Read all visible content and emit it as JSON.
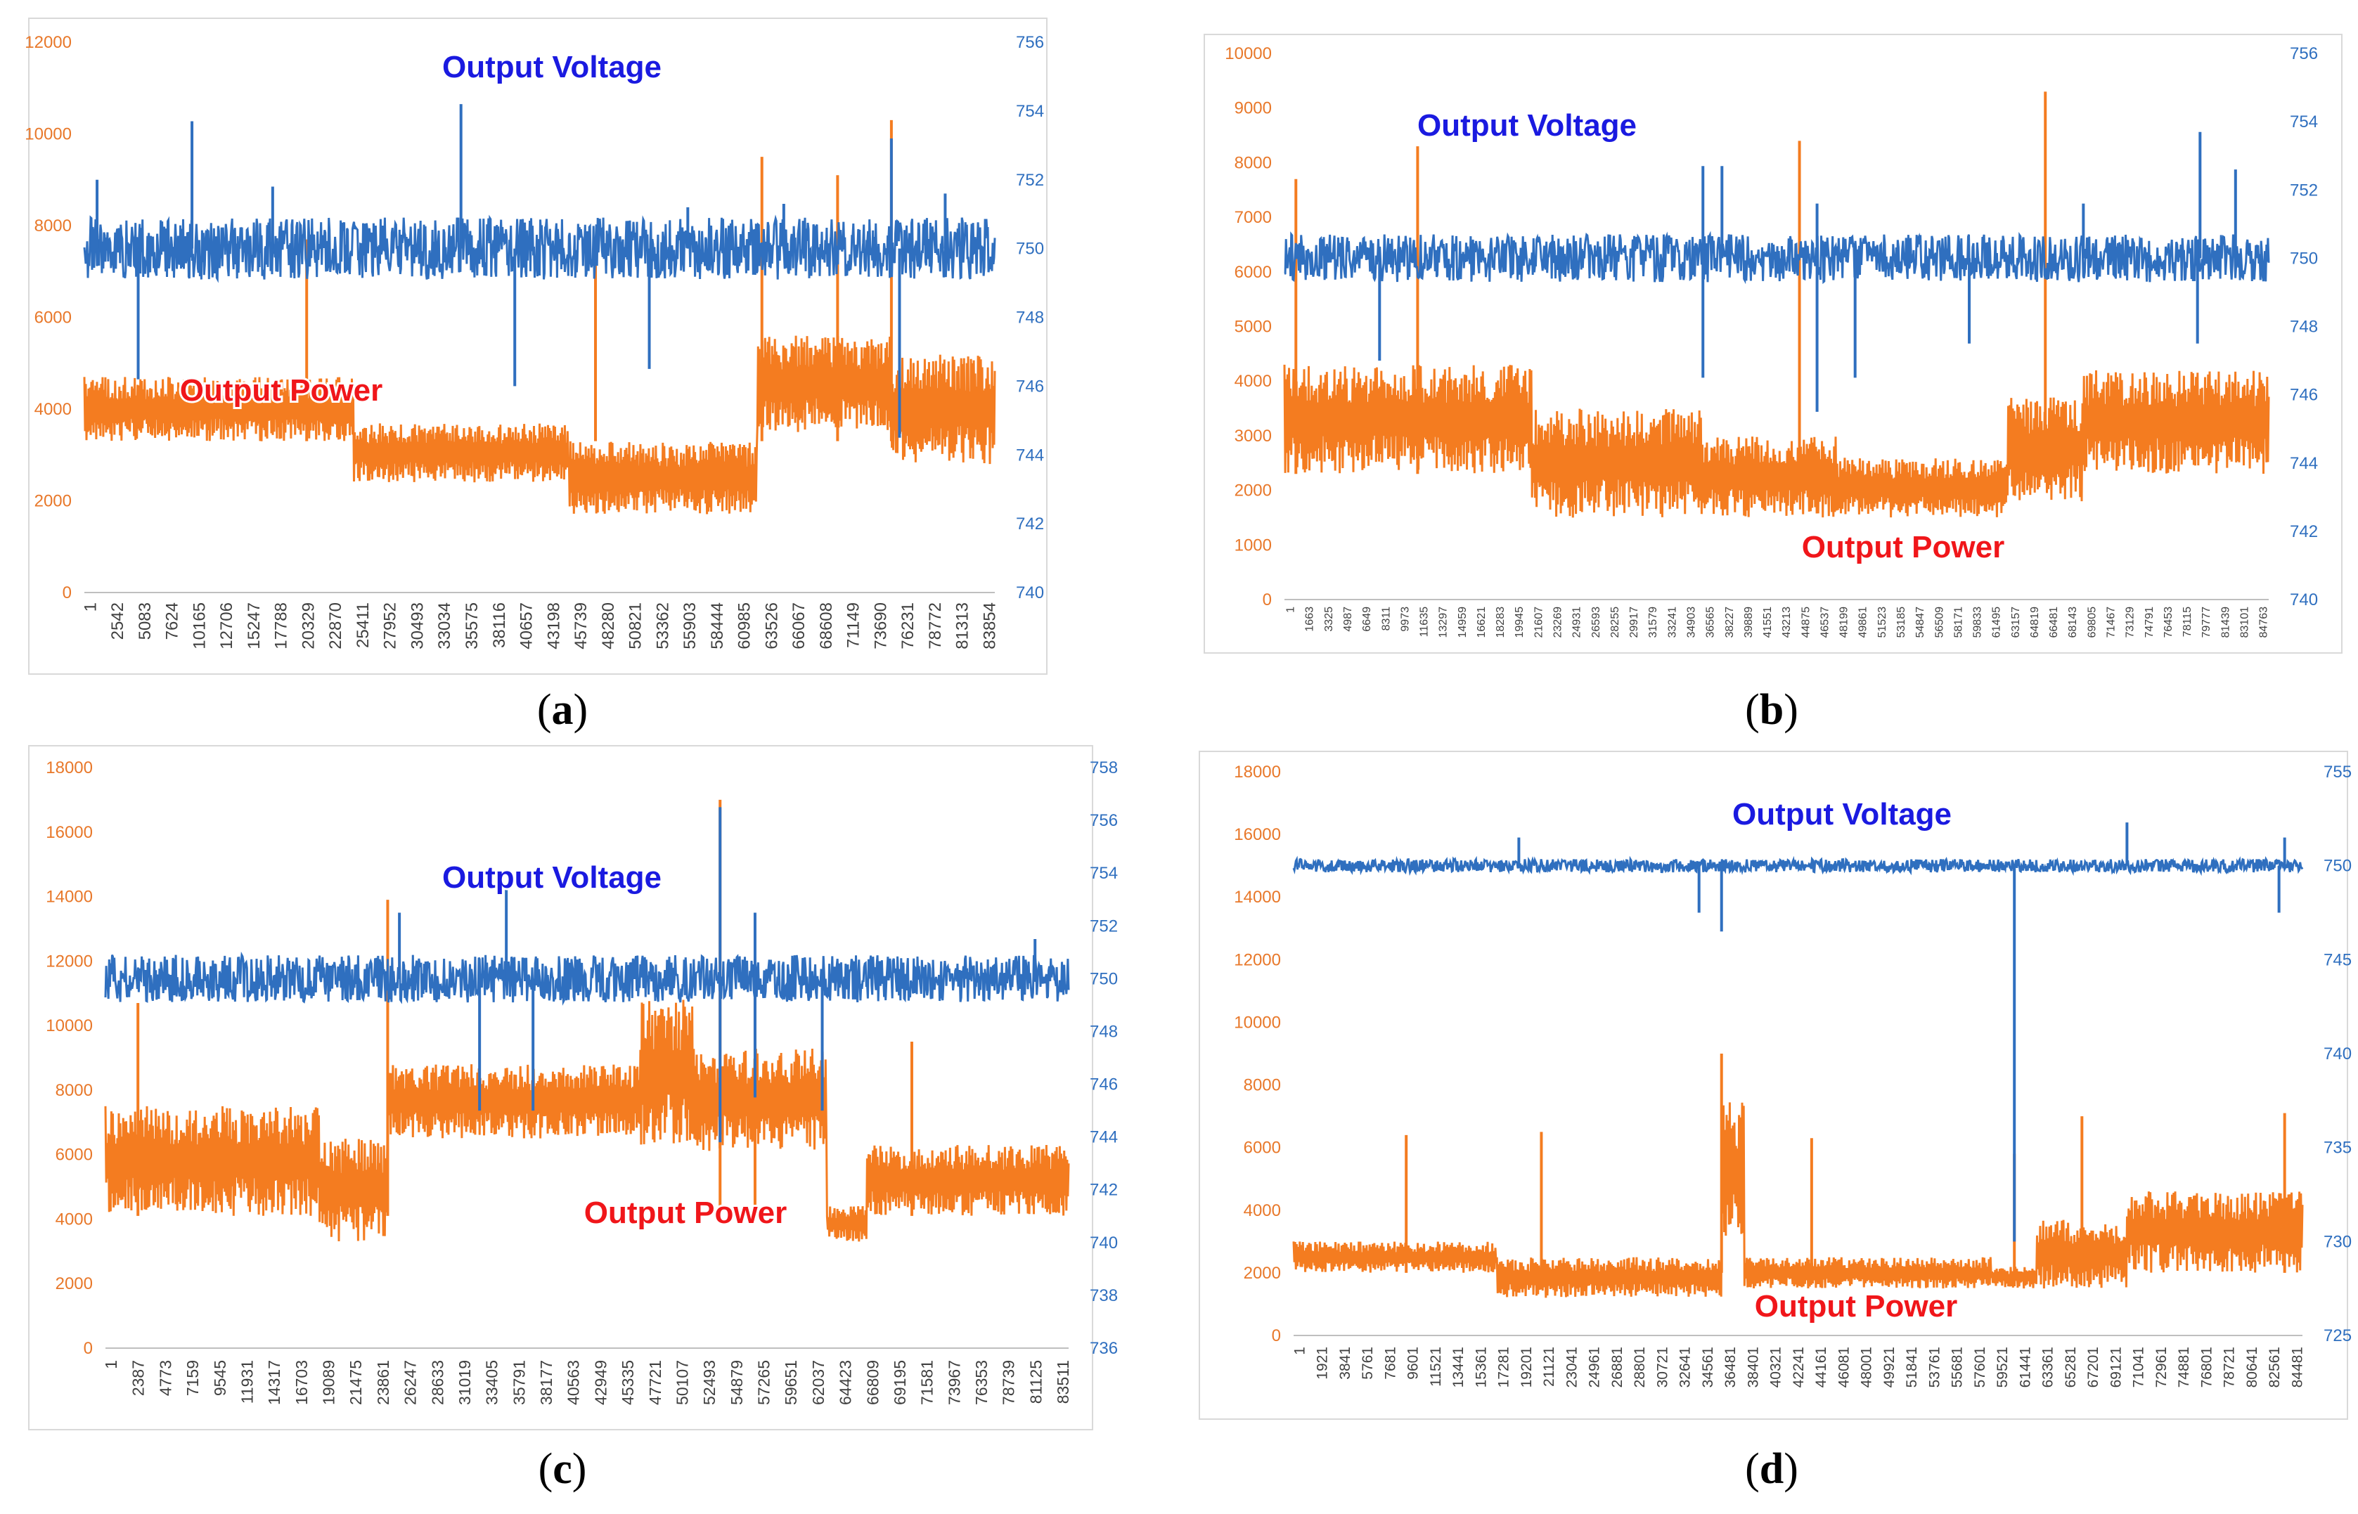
{
  "colors": {
    "power": "#f47c20",
    "voltage": "#2f6fbf",
    "voltage_label": "#1a1ae0",
    "power_label": "#f0161a",
    "left_tick": "#e8782a",
    "right_tick": "#2f6fbf",
    "x_tick": "#404040"
  },
  "chart_data": [
    {
      "type": "line",
      "panel": "a",
      "caption_open": "(",
      "caption_letter": "a",
      "caption_close": ")",
      "series": [
        {
          "name": "Output Power",
          "axis": "left",
          "base_segments": [
            [
              0,
              4700,
              3300
            ],
            [
              25411,
              3700,
              2400
            ],
            [
              45739,
              3300,
              1700
            ],
            [
              63526,
              5600,
              3500
            ],
            [
              76231,
              5200,
              2800
            ]
          ],
          "spikes": [
            [
              21000,
              7700
            ],
            [
              48280,
              7300
            ],
            [
              64000,
              9500
            ],
            [
              71149,
              9100
            ],
            [
              76231,
              10300
            ]
          ]
        },
        {
          "name": "Output Voltage",
          "axis": "right",
          "baseline": 750,
          "band": 0.9,
          "spikes": [
            [
              1200,
              752
            ],
            [
              10165,
              753.7
            ],
            [
              17788,
              751.8
            ],
            [
              35575,
              754.2
            ],
            [
              57000,
              751.2
            ],
            [
              66067,
              751.3
            ],
            [
              76231,
              753.2
            ],
            [
              81313,
              751.6
            ],
            [
              5083,
              746.2
            ],
            [
              40657,
              746
            ],
            [
              53362,
              746.5
            ],
            [
              77000,
              744.5
            ]
          ]
        }
      ],
      "series_labels": {
        "voltage": "Output Voltage",
        "power": "Output Power"
      },
      "left_axis": {
        "min": 0,
        "max": 12000,
        "ticks": [
          "0",
          "2000",
          "4000",
          "6000",
          "8000",
          "10000",
          "12000"
        ]
      },
      "right_axis": {
        "min": 740,
        "max": 756,
        "ticks": [
          "740",
          "742",
          "744",
          "746",
          "748",
          "750",
          "752",
          "754",
          "756"
        ]
      },
      "x_max": 86000,
      "x_ticks": [
        "1",
        "2542",
        "5083",
        "7624",
        "10165",
        "12706",
        "15247",
        "17788",
        "20329",
        "22870",
        "25411",
        "27952",
        "30493",
        "33034",
        "35575",
        "38116",
        "40657",
        "43198",
        "45739",
        "48280",
        "50821",
        "53362",
        "55903",
        "58444",
        "60985",
        "63526",
        "66067",
        "68608",
        "71149",
        "73690",
        "76231",
        "78772",
        "81313",
        "83854"
      ]
    },
    {
      "type": "line",
      "panel": "b",
      "caption_open": "(",
      "caption_letter": "b",
      "caption_close": ")",
      "series": [
        {
          "name": "Output Power",
          "axis": "left",
          "base_segments": [
            [
              0,
              4300,
              2300
            ],
            [
              21607,
              3500,
              1500
            ],
            [
              36565,
              3000,
              1500
            ],
            [
              48199,
              2600,
              1500
            ],
            [
              63157,
              3700,
              1800
            ],
            [
              69805,
              4200,
              2300
            ]
          ],
          "spikes": [
            [
              11635,
              8300
            ],
            [
              45000,
              8400
            ],
            [
              66481,
              9300
            ],
            [
              1000,
              7700
            ]
          ]
        },
        {
          "name": "Output Voltage",
          "axis": "right",
          "baseline": 750,
          "band": 0.7,
          "spikes": [
            [
              36565,
              752.7
            ],
            [
              38227,
              752.7
            ],
            [
              46537,
              751.6
            ],
            [
              69805,
              751.6
            ],
            [
              80000,
              753.7
            ],
            [
              83101,
              752.6
            ],
            [
              36565,
              746.5
            ],
            [
              46537,
              745.5
            ],
            [
              8311,
              747
            ],
            [
              49861,
              746.5
            ],
            [
              59833,
              747.5
            ],
            [
              79777,
              747.5
            ]
          ]
        }
      ],
      "series_labels": {
        "voltage": "Output Voltage",
        "power": "Output Power"
      },
      "left_axis": {
        "min": 0,
        "max": 10000,
        "ticks": [
          "0",
          "1000",
          "2000",
          "3000",
          "4000",
          "5000",
          "6000",
          "7000",
          "8000",
          "9000",
          "10000"
        ]
      },
      "right_axis": {
        "min": 740,
        "max": 756,
        "ticks": [
          "740",
          "742",
          "744",
          "746",
          "748",
          "750",
          "752",
          "754",
          "756"
        ]
      },
      "x_max": 86000,
      "x_ticks": [
        "1",
        "1663",
        "3325",
        "4987",
        "6649",
        "8311",
        "9973",
        "11635",
        "13297",
        "14959",
        "16621",
        "18283",
        "19945",
        "21607",
        "23269",
        "24931",
        "26593",
        "28255",
        "29917",
        "31579",
        "33241",
        "34903",
        "36565",
        "38227",
        "39889",
        "41551",
        "43213",
        "44875",
        "46537",
        "48199",
        "49861",
        "51523",
        "53185",
        "54847",
        "56509",
        "58171",
        "59833",
        "61495",
        "63157",
        "64819",
        "66481",
        "68143",
        "69805",
        "71467",
        "73129",
        "74791",
        "76453",
        "78115",
        "79777",
        "81439",
        "83101",
        "84763"
      ]
    },
    {
      "type": "line",
      "panel": "c",
      "caption_open": "(",
      "caption_letter": "c",
      "caption_close": ")",
      "series": [
        {
          "name": "Output Power",
          "axis": "left",
          "base_segments": [
            [
              0,
              7500,
              4100
            ],
            [
              19089,
              6500,
              3300
            ],
            [
              25200,
              8800,
              6500
            ],
            [
              47721,
              10800,
              6300
            ],
            [
              52493,
              9300,
              6100
            ],
            [
              64423,
              4400,
              3300
            ],
            [
              68000,
              6300,
              4100
            ]
          ],
          "spikes": [
            [
              2900,
              10700
            ],
            [
              25200,
              13900
            ],
            [
              54879,
              17000
            ],
            [
              58000,
              11000
            ],
            [
              72000,
              9500
            ]
          ]
        },
        {
          "name": "Output Voltage",
          "axis": "right",
          "baseline": 750,
          "band": 0.9,
          "spikes": [
            [
              54879,
              756.5
            ],
            [
              35791,
              753.5
            ],
            [
              26247,
              752.5
            ],
            [
              58000,
              752.5
            ],
            [
              83000,
              751.5
            ],
            [
              54879,
              743.8
            ],
            [
              33405,
              745
            ],
            [
              38177,
              745
            ],
            [
              58000,
              745.5
            ],
            [
              64000,
              745
            ]
          ]
        }
      ],
      "series_labels": {
        "voltage": "Output Voltage",
        "power": "Output Power"
      },
      "left_axis": {
        "min": 0,
        "max": 18000,
        "ticks": [
          "0",
          "2000",
          "4000",
          "6000",
          "8000",
          "10000",
          "12000",
          "14000",
          "16000",
          "18000"
        ]
      },
      "right_axis": {
        "min": 736,
        "max": 758,
        "ticks": [
          "736",
          "738",
          "740",
          "742",
          "744",
          "746",
          "748",
          "750",
          "752",
          "754",
          "756",
          "758"
        ]
      },
      "x_max": 86000,
      "x_ticks": [
        "1",
        "2387",
        "4773",
        "7159",
        "9545",
        "11931",
        "14317",
        "16703",
        "19089",
        "21475",
        "23861",
        "26247",
        "28633",
        "31019",
        "33405",
        "35791",
        "38177",
        "40563",
        "42949",
        "45335",
        "47721",
        "50107",
        "52493",
        "54879",
        "57265",
        "59651",
        "62037",
        "64423",
        "66809",
        "69195",
        "71581",
        "73967",
        "76353",
        "78739",
        "81125",
        "83511"
      ]
    },
    {
      "type": "line",
      "panel": "d",
      "caption_open": "(",
      "caption_letter": "d",
      "caption_close": ")",
      "series": [
        {
          "name": "Output Power",
          "axis": "left",
          "base_segments": [
            [
              0,
              3000,
              2000
            ],
            [
              17281,
              2500,
              1200
            ],
            [
              36481,
              7500,
              3000
            ],
            [
              38401,
              2500,
              1500
            ],
            [
              59521,
              2200,
              1500
            ],
            [
              63361,
              3700,
              1500
            ],
            [
              71041,
              4600,
              2000
            ]
          ],
          "spikes": [
            [
              9601,
              6400
            ],
            [
              21121,
              6500
            ],
            [
              36481,
              9000
            ],
            [
              44161,
              6300
            ],
            [
              61441,
              5800
            ],
            [
              67201,
              7000
            ],
            [
              84481,
              7100
            ]
          ]
        },
        {
          "name": "Output Voltage",
          "axis": "right",
          "baseline": 750,
          "band": 0.35,
          "spikes": [
            [
              61441,
              730
            ],
            [
              36481,
              746.5
            ],
            [
              34561,
              747.5
            ],
            [
              71041,
              752.3
            ],
            [
              84481,
              751.5
            ],
            [
              19201,
              751.5
            ],
            [
              84000,
              747.5
            ]
          ]
        }
      ],
      "series_labels": {
        "voltage": "Output Voltage",
        "power": "Output Power"
      },
      "left_axis": {
        "min": 0,
        "max": 18000,
        "ticks": [
          "0",
          "2000",
          "4000",
          "6000",
          "8000",
          "10000",
          "12000",
          "14000",
          "16000",
          "18000"
        ]
      },
      "right_axis": {
        "min": 725,
        "max": 755,
        "ticks": [
          "725",
          "730",
          "735",
          "740",
          "745",
          "750",
          "755"
        ]
      },
      "x_max": 86000,
      "x_ticks": [
        "1",
        "1921",
        "3841",
        "5761",
        "7681",
        "9601",
        "11521",
        "13441",
        "15361",
        "17281",
        "19201",
        "21121",
        "23041",
        "24961",
        "26881",
        "28801",
        "30721",
        "32641",
        "34561",
        "36481",
        "38401",
        "40321",
        "42241",
        "44161",
        "46081",
        "48001",
        "49921",
        "51841",
        "53761",
        "55681",
        "57601",
        "59521",
        "61441",
        "63361",
        "65281",
        "67201",
        "69121",
        "71041",
        "72961",
        "74881",
        "76801",
        "78721",
        "80641",
        "82561",
        "84481"
      ]
    }
  ]
}
